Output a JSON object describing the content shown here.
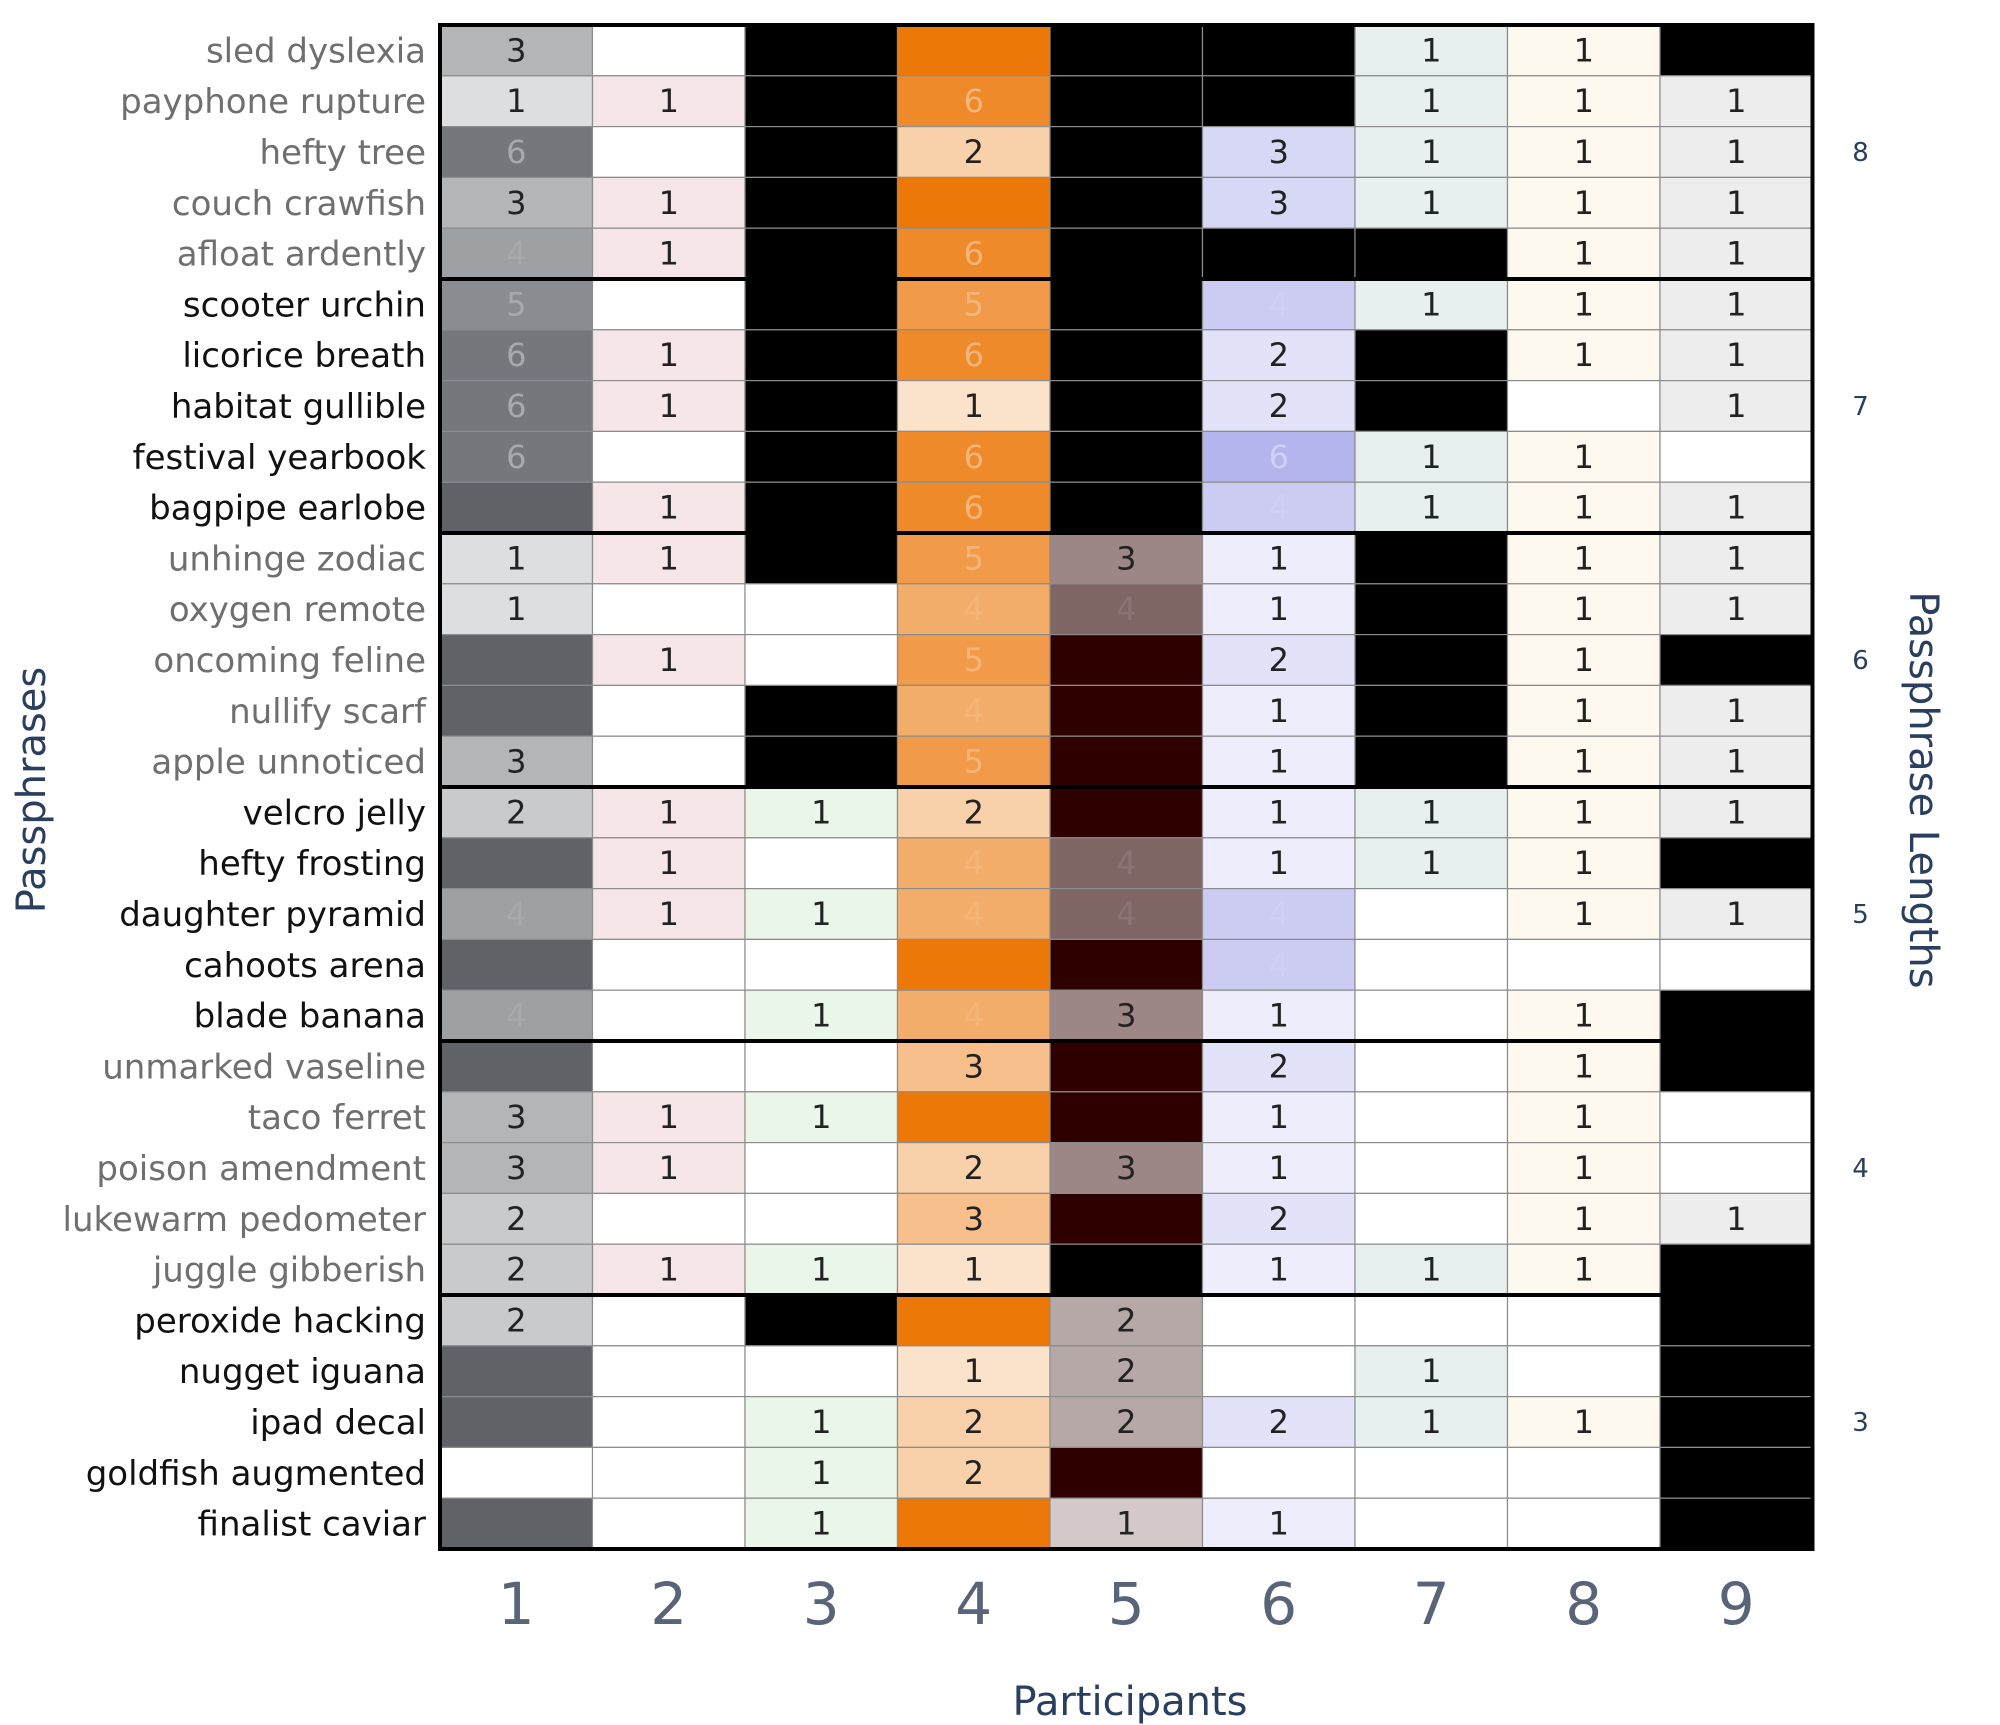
{
  "chart_data": {
    "type": "heatmap",
    "xlabel": "Participants",
    "ylabel": "Passphrases",
    "y2label": "Passphrase Lengths",
    "participants": [
      "1",
      "2",
      "3",
      "4",
      "5",
      "6",
      "7",
      "8",
      "9"
    ],
    "group_labels": [
      "8",
      "7",
      "6",
      "5",
      "4",
      "3"
    ],
    "legend": "none",
    "rows": [
      {
        "name": "sled dyslexia",
        "values": [
          3,
          0,
          -1,
          7,
          -1,
          -1,
          1,
          1,
          -1
        ]
      },
      {
        "name": "payphone rupture",
        "values": [
          1,
          1,
          -1,
          6,
          -1,
          -1,
          1,
          1,
          1
        ]
      },
      {
        "name": "hefty tree",
        "values": [
          6,
          0,
          -1,
          2,
          -1,
          3,
          1,
          1,
          1
        ]
      },
      {
        "name": "couch crawfish",
        "values": [
          3,
          1,
          -1,
          7,
          -1,
          3,
          1,
          1,
          1
        ]
      },
      {
        "name": "afloat ardently",
        "values": [
          4,
          1,
          -1,
          6,
          -1,
          -1,
          -1,
          1,
          1
        ]
      },
      {
        "name": "scooter urchin",
        "values": [
          5,
          0,
          -1,
          5,
          -1,
          4,
          1,
          1,
          1
        ]
      },
      {
        "name": "licorice breath",
        "values": [
          6,
          1,
          -1,
          6,
          -1,
          2,
          -1,
          1,
          1
        ]
      },
      {
        "name": "habitat gullible",
        "values": [
          6,
          1,
          -1,
          1,
          -1,
          2,
          -1,
          0,
          1
        ]
      },
      {
        "name": "festival yearbook",
        "values": [
          6,
          0,
          -1,
          6,
          -1,
          6,
          1,
          1,
          0
        ]
      },
      {
        "name": "bagpipe earlobe",
        "values": [
          7,
          1,
          -1,
          6,
          -1,
          4,
          1,
          1,
          1
        ]
      },
      {
        "name": "unhinge zodiac",
        "values": [
          1,
          1,
          -1,
          5,
          3,
          1,
          -1,
          1,
          1
        ]
      },
      {
        "name": "oxygen remote",
        "values": [
          1,
          0,
          0,
          4,
          4,
          1,
          -1,
          1,
          1
        ]
      },
      {
        "name": "oncoming feline",
        "values": [
          7,
          1,
          0,
          5,
          7,
          2,
          -1,
          1,
          -1
        ]
      },
      {
        "name": "nullify scarf",
        "values": [
          7,
          0,
          -1,
          4,
          7,
          1,
          -1,
          1,
          1
        ]
      },
      {
        "name": "apple unnoticed",
        "values": [
          3,
          0,
          -1,
          5,
          7,
          1,
          -1,
          1,
          1
        ]
      },
      {
        "name": "velcro jelly",
        "values": [
          2,
          1,
          1,
          2,
          7,
          1,
          1,
          1,
          1
        ]
      },
      {
        "name": "hefty frosting",
        "values": [
          7,
          1,
          0,
          4,
          4,
          1,
          1,
          1,
          -1
        ]
      },
      {
        "name": "daughter pyramid",
        "values": [
          4,
          1,
          1,
          4,
          4,
          4,
          0,
          1,
          1
        ]
      },
      {
        "name": "cahoots arena",
        "values": [
          7,
          0,
          0,
          7,
          7,
          4,
          0,
          0,
          0
        ]
      },
      {
        "name": "blade banana",
        "values": [
          4,
          0,
          1,
          4,
          3,
          1,
          0,
          1,
          -1
        ]
      },
      {
        "name": "unmarked vaseline",
        "values": [
          7,
          0,
          0,
          3,
          7,
          2,
          0,
          1,
          -1
        ]
      },
      {
        "name": "taco ferret",
        "values": [
          3,
          1,
          1,
          7,
          7,
          1,
          0,
          1,
          0
        ]
      },
      {
        "name": "poison amendment",
        "values": [
          3,
          1,
          0,
          2,
          3,
          1,
          0,
          1,
          0
        ]
      },
      {
        "name": "lukewarm pedometer",
        "values": [
          2,
          0,
          0,
          3,
          7,
          2,
          0,
          1,
          1
        ]
      },
      {
        "name": "juggle gibberish",
        "values": [
          2,
          1,
          1,
          1,
          -1,
          1,
          1,
          1,
          -1
        ]
      },
      {
        "name": "peroxide hacking",
        "values": [
          2,
          0,
          -1,
          7,
          2,
          0,
          0,
          0,
          -1
        ]
      },
      {
        "name": "nugget iguana",
        "values": [
          7,
          0,
          0,
          1,
          2,
          0,
          1,
          0,
          -1
        ]
      },
      {
        "name": "ipad decal",
        "values": [
          7,
          0,
          1,
          2,
          2,
          2,
          1,
          1,
          -1
        ]
      },
      {
        "name": "goldfish augmented",
        "values": [
          0,
          0,
          1,
          2,
          7,
          0,
          0,
          0,
          -1
        ]
      },
      {
        "name": "finalist caviar",
        "values": [
          7,
          0,
          1,
          7,
          1,
          1,
          0,
          0,
          -1
        ]
      }
    ],
    "row_label_colors": [
      "#6f6f6f",
      "#6f6f6f",
      "#6f6f6f",
      "#6f6f6f",
      "#6f6f6f",
      "#111111",
      "#111111",
      "#111111",
      "#111111",
      "#111111",
      "#6f6f6f",
      "#6f6f6f",
      "#6f6f6f",
      "#6f6f6f",
      "#6f6f6f",
      "#111111",
      "#111111",
      "#111111",
      "#111111",
      "#111111",
      "#6f6f6f",
      "#6f6f6f",
      "#6f6f6f",
      "#6f6f6f",
      "#6f6f6f",
      "#111111",
      "#111111",
      "#111111",
      "#111111",
      "#111111"
    ],
    "palette": {
      "column_base_rgb": [
        [
          95,
          99,
          104
        ],
        [
          214,
          138,
          142
        ],
        [
          152,
          212,
          152
        ],
        [
          236,
          120,
          10
        ],
        [
          46,
          0,
          0
        ],
        [
          170,
          170,
          236
        ],
        [
          140,
          180,
          180
        ],
        [
          247,
          228,
          180
        ],
        [
          170,
          170,
          170
        ]
      ],
      "blank_color": "#000000",
      "grid_color": "#8c8c8c",
      "border_color": "#000000",
      "dark_text": "#222222"
    }
  }
}
